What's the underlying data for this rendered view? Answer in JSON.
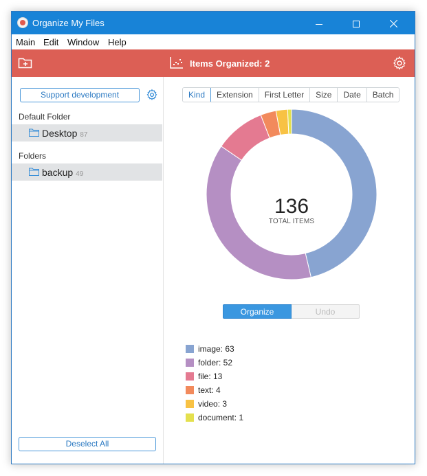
{
  "window": {
    "title": "Organize My Files"
  },
  "menu": {
    "items": [
      "Main",
      "Edit",
      "Window",
      "Help"
    ]
  },
  "toolbar": {
    "status_label": "Items Organized:",
    "status_value": "2"
  },
  "sidebar": {
    "support_label": "Support development",
    "default_heading": "Default Folder",
    "default_folder": {
      "name": "Desktop",
      "count": "87"
    },
    "folders_heading": "Folders",
    "folders": [
      {
        "name": "backup",
        "count": "49"
      }
    ],
    "deselect_label": "Deselect All"
  },
  "tabs": [
    "Kind",
    "Extension",
    "First Letter",
    "Size",
    "Date",
    "Batch"
  ],
  "active_tab": "Kind",
  "summary": {
    "total": "136",
    "total_label": "TOTAL ITEMS"
  },
  "actions": {
    "organize_label": "Organize",
    "undo_label": "Undo"
  },
  "colors": {
    "titlebar": "#1883d7",
    "toolbar": "#dc5f55",
    "accent": "#3a97e0"
  },
  "chart_data": {
    "type": "pie",
    "donut": true,
    "categories": [
      "image",
      "folder",
      "file",
      "text",
      "video",
      "document"
    ],
    "values": [
      63,
      52,
      13,
      4,
      3,
      1
    ],
    "colors": [
      "#88a4d1",
      "#b58fc3",
      "#e47a91",
      "#f28a5c",
      "#f8c244",
      "#e4e04e"
    ],
    "legend_position": "bottom-left"
  }
}
